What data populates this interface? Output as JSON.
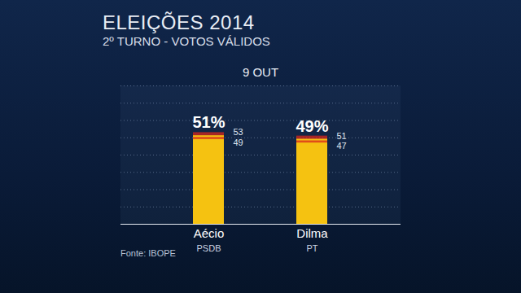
{
  "chart_data": {
    "type": "bar",
    "title": "ELEIÇÕES 2014",
    "subtitle": "2º TURNO - VOTOS VÁLIDOS",
    "date": "9 OUT",
    "source": "Fonte: IBOPE",
    "categories": [
      "Aécio",
      "Dilma"
    ],
    "parties": [
      "PSDB",
      "PT"
    ],
    "values": [
      51,
      49
    ],
    "value_labels": [
      "51%",
      "49%"
    ],
    "error_low": [
      49,
      47
    ],
    "error_high": [
      53,
      51
    ],
    "color": "#f5c211",
    "ylim": [
      0,
      80
    ],
    "yticks": [
      0,
      10,
      20,
      30,
      40,
      50,
      60,
      70,
      80
    ],
    "grid": true,
    "data_labels": true,
    "tick_labels": "x"
  }
}
